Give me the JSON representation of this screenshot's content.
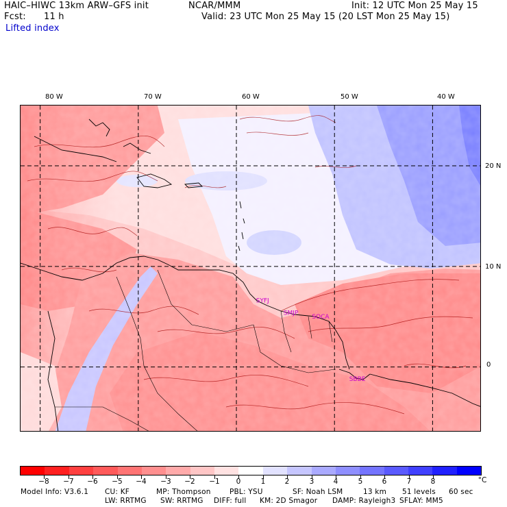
{
  "header": {
    "model_title": "HAIC–HIWC 13km ARW–GFS init",
    "org": "NCAR/MMM",
    "init": "Init: 12 UTC Mon 25 May 15",
    "fcst_label": "Fcst:",
    "fcst_value": "11 h",
    "valid": "Valid: 23 UTC Mon 25 May 15 (20 LST Mon 25 May 15)",
    "field_name": "Lifted index"
  },
  "map": {
    "lon_labels": [
      "80 W",
      "70 W",
      "60 W",
      "50 W",
      "40 W"
    ],
    "lat_labels": [
      "20 N",
      "10 N",
      "0"
    ],
    "lon_range": [
      -82,
      -35
    ],
    "lat_range": [
      -6.5,
      26
    ],
    "grid_lons": [
      -80,
      -70,
      -60,
      -50,
      -40
    ],
    "grid_lats": [
      20,
      10,
      0
    ],
    "station_labels": [
      {
        "text": "SYFJ",
        "lon": -58.0,
        "lat": 6.4
      },
      {
        "text": "SMJP",
        "lon": -55.2,
        "lat": 5.2
      },
      {
        "text": "SOCA",
        "lon": -52.3,
        "lat": 4.8
      },
      {
        "text": "SBBE",
        "lon": -48.5,
        "lat": -1.4
      }
    ],
    "station_color": "#cc00cc"
  },
  "colorbar": {
    "colors": [
      "#ff0000",
      "#ff2020",
      "#ff4040",
      "#ff5a5a",
      "#ff7474",
      "#ff8f8f",
      "#ffaaaa",
      "#ffc6c6",
      "#ffe2e2",
      "#ffffff",
      "#e2e2ff",
      "#c6c6ff",
      "#aaaaff",
      "#8f8fff",
      "#7474ff",
      "#5a5aff",
      "#4040ff",
      "#2020ff",
      "#0000ff"
    ],
    "labels": [
      "−8",
      "−7",
      "−6",
      "−5",
      "−4",
      "−3",
      "−2",
      "−1",
      "0",
      "1",
      "2",
      "3",
      "4",
      "5",
      "6",
      "7",
      "8"
    ],
    "unit": "°C"
  },
  "footer": {
    "line1": [
      {
        "text": "Model Info: V3.6.1"
      },
      {
        "text": "CU: KF"
      },
      {
        "text": "MP: Thompson"
      },
      {
        "text": "PBL: YSU"
      },
      {
        "text": "SF: Noah LSM"
      },
      {
        "text": "13 km"
      },
      {
        "text": "51 levels"
      },
      {
        "text": "60 sec"
      }
    ],
    "line2": [
      {
        "text": "LW: RRTMG"
      },
      {
        "text": "SW: RRTMG"
      },
      {
        "text": "DIFF: full"
      },
      {
        "text": "KM: 2D Smagor"
      },
      {
        "text": "DAMP: Rayleigh3"
      },
      {
        "text": "SFLAY: MM5"
      }
    ]
  }
}
